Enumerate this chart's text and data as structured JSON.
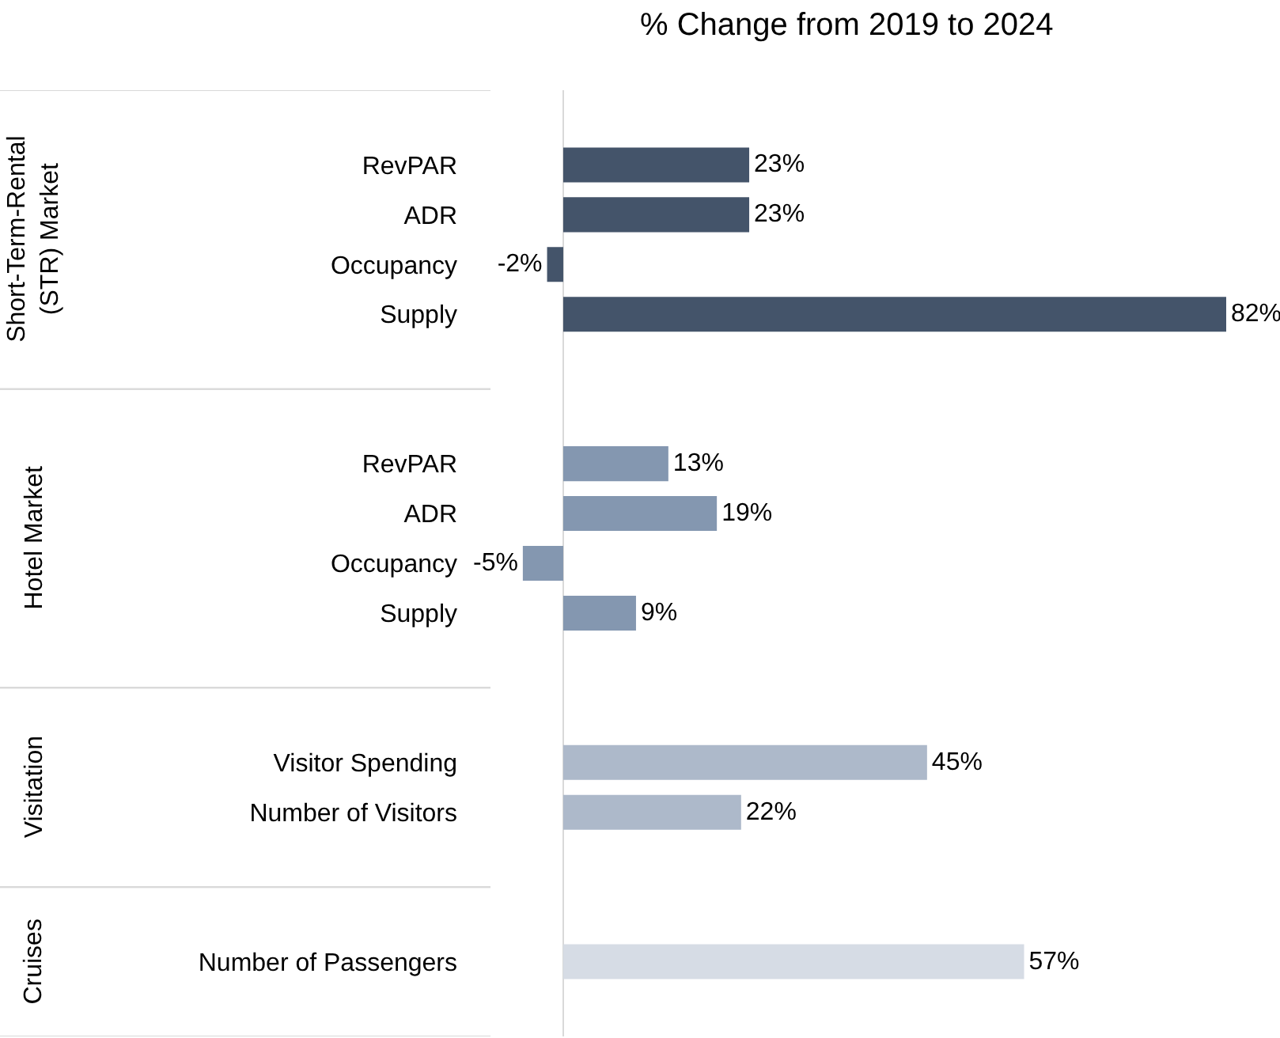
{
  "chart_data": {
    "type": "bar",
    "orientation": "horizontal",
    "title": "% Change from 2019 to 2024",
    "categories": [
      "RevPAR",
      "ADR",
      "Occupancy",
      "Supply",
      "RevPAR",
      "ADR",
      "Occupancy",
      "Supply",
      "Visitor Spending",
      "Number of Visitors",
      "Number of Passengers"
    ],
    "series": [
      {
        "color": "#44546a",
        "values": [
          23,
          23,
          -2,
          82,
          null,
          null,
          null,
          null,
          null,
          null,
          null
        ],
        "value_labels": [
          "23%",
          "23%",
          "-2%",
          "82%",
          null,
          null,
          null,
          null,
          null,
          null,
          null
        ]
      },
      {
        "color": "#8497b0",
        "values": [
          null,
          null,
          null,
          null,
          13,
          19,
          -5,
          9,
          null,
          null,
          null
        ],
        "value_labels": [
          null,
          null,
          null,
          null,
          "13%",
          "19%",
          "-5%",
          "9%",
          null,
          null,
          null
        ]
      },
      {
        "color": "#adb9ca",
        "values": [
          null,
          null,
          null,
          null,
          null,
          null,
          null,
          null,
          45,
          22,
          null
        ],
        "value_labels": [
          null,
          null,
          null,
          null,
          null,
          null,
          null,
          null,
          "45%",
          "22%",
          null
        ]
      },
      {
        "color": "#d6dce5",
        "values": [
          null,
          null,
          null,
          null,
          null,
          null,
          null,
          null,
          null,
          null,
          57
        ],
        "value_labels": [
          null,
          null,
          null,
          null,
          null,
          null,
          null,
          null,
          null,
          null,
          "57%"
        ]
      }
    ],
    "annotations": [
      "Short-Term-Rental (STR) Market",
      "Hotel Market",
      "Visitation",
      "Cruises"
    ],
    "xlim": [
      -9,
      82
    ],
    "legend": false
  }
}
